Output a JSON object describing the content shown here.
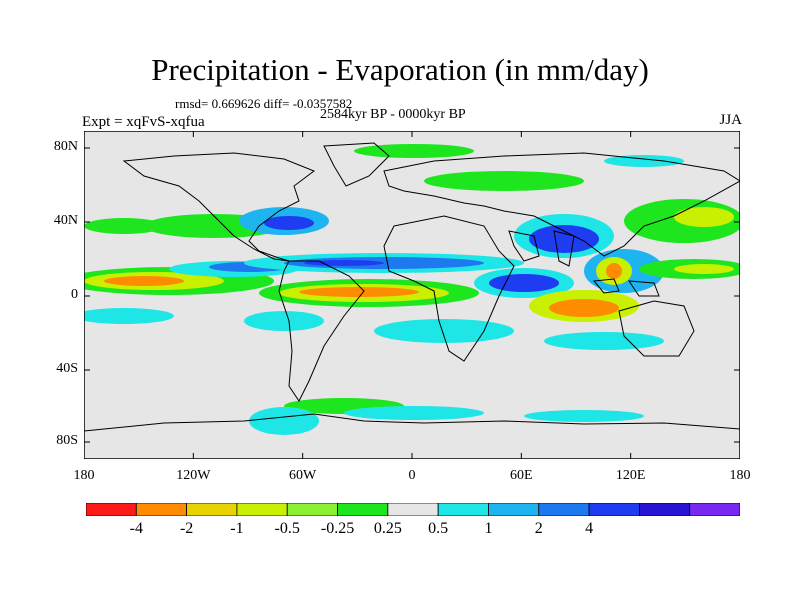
{
  "title": "Precipitation - Evaporation (in mm/day)",
  "stats": "rmsd= 0.669626  diff= -0.0357582",
  "period": "2584kyr BP - 0000kyr BP",
  "experiment": "Expt = xqFvS-xqfua",
  "season": "JJA",
  "y_ticks": [
    "80N",
    "40N",
    "0",
    "40S",
    "80S"
  ],
  "x_ticks": [
    "180",
    "120W",
    "60W",
    "0",
    "60E",
    "120E",
    "180"
  ],
  "colorbar": {
    "labels": [
      "-4",
      "-2",
      "-1",
      "-0.5",
      "-0.25",
      "0.25",
      "0.5",
      "1",
      "2",
      "4"
    ],
    "colors": [
      "#ff1a1a",
      "#ff8c00",
      "#e8d200",
      "#c8f000",
      "#8cf032",
      "#1ee61e",
      "#e6e6e6",
      "#1ee6e6",
      "#1eb4f0",
      "#1e78f0",
      "#1e3cf0",
      "#2814d2",
      "#7828f0"
    ]
  },
  "colors": {
    "background_field": "#e6e6e6",
    "coastline": "#000000"
  }
}
